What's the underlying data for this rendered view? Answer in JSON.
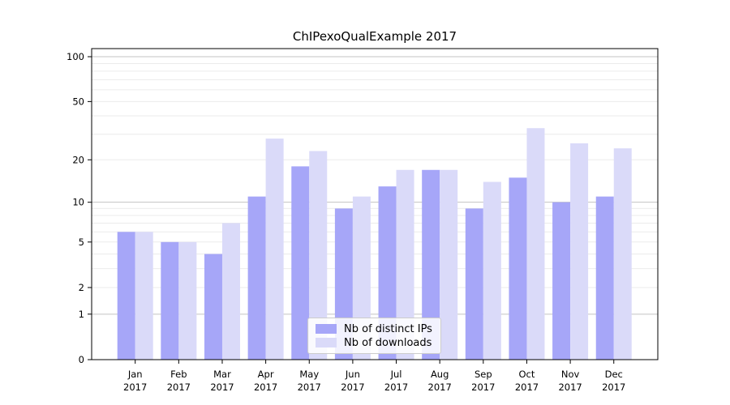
{
  "chart_data": {
    "type": "bar",
    "title": "ChIPexoQualExample 2017",
    "yscale": "log1p",
    "categories": [
      "Jan",
      "Feb",
      "Mar",
      "Apr",
      "May",
      "Jun",
      "Jul",
      "Aug",
      "Sep",
      "Oct",
      "Nov",
      "Dec"
    ],
    "x_year_label": "2017",
    "series": [
      {
        "name": "Nb of distinct IPs",
        "key": "distinct-ips",
        "color": "#a6a6f8",
        "values": [
          6,
          5,
          4,
          11,
          18,
          9,
          13,
          17,
          9,
          15,
          10,
          11
        ]
      },
      {
        "name": "Nb of downloads",
        "key": "downloads",
        "color": "#dadaf9",
        "values": [
          6,
          5,
          7,
          28,
          23,
          11,
          17,
          17,
          14,
          33,
          26,
          24
        ]
      }
    ],
    "yticks": [
      0,
      1,
      2,
      5,
      10,
      20,
      50,
      100
    ],
    "minor_gridlines": [
      2,
      3,
      4,
      5,
      6,
      7,
      8,
      9,
      20,
      30,
      40,
      50,
      60,
      70,
      80,
      90
    ],
    "major_gridlines": [
      1,
      10,
      100
    ],
    "ylim": [
      0,
      113
    ],
    "grid": "horizontal",
    "legend_position": "lower center"
  },
  "colors": {
    "grid_minor": "#ebebeb",
    "grid_major": "#c3c3c3",
    "axis": "#000000",
    "text": "#000000",
    "legend_border": "#cccccc"
  }
}
